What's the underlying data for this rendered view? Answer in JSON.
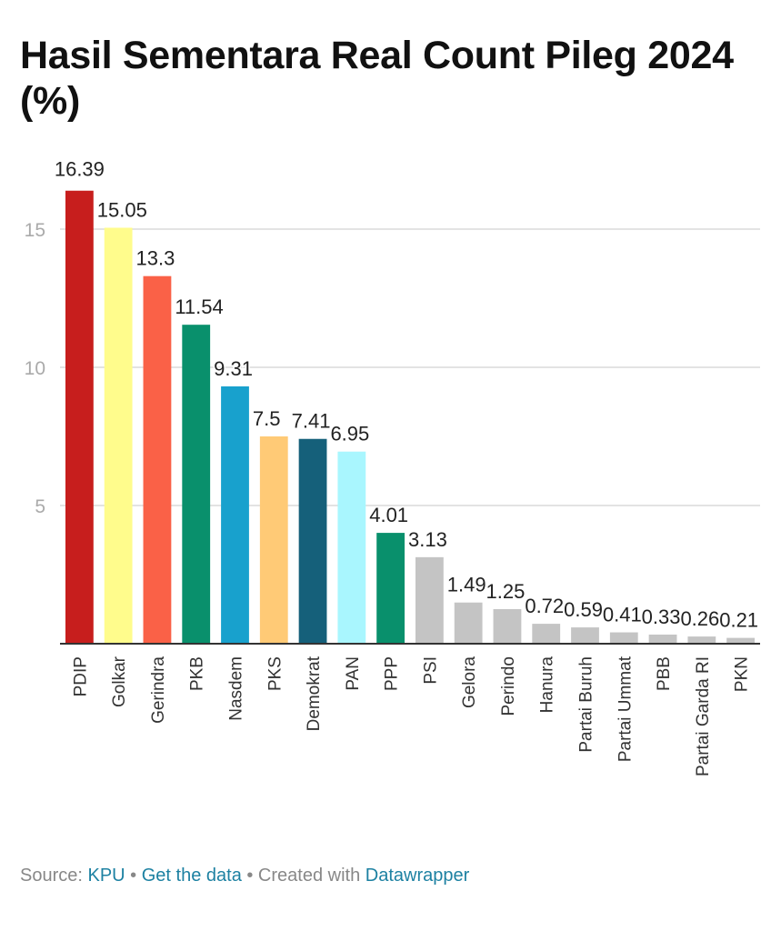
{
  "chart_data": {
    "type": "bar",
    "title": "Hasil Sementara Real Count Pileg 2024 (%)",
    "xlabel": "",
    "ylabel": "",
    "ylim": [
      0,
      16.39
    ],
    "yticks": [
      5,
      10,
      15
    ],
    "grid": true,
    "categories": [
      "PDIP",
      "Golkar",
      "Gerindra",
      "PKB",
      "Nasdem",
      "PKS",
      "Demokrat",
      "PAN",
      "PPP",
      "PSI",
      "Gelora",
      "Perindo",
      "Hanura",
      "Partai Buruh",
      "Partai Ummat",
      "PBB",
      "Partai Garda RI",
      "PKN"
    ],
    "values": [
      16.39,
      15.05,
      13.3,
      11.54,
      9.31,
      7.5,
      7.41,
      6.95,
      4.01,
      3.13,
      1.49,
      1.25,
      0.72,
      0.59,
      0.41,
      0.33,
      0.26,
      0.21
    ],
    "labels": [
      "16.39",
      "15.05",
      "13.3",
      "11.54",
      "9.31",
      "7.5",
      "7.41",
      "6.95",
      "4.01",
      "3.13",
      "1.49",
      "1.25",
      "0.72",
      "0.59",
      "0.41",
      "0.33",
      "0.26",
      "0.21"
    ],
    "colors": [
      "#c71e1d",
      "#fffc8c",
      "#fa6147",
      "#09906c",
      "#18a1cd",
      "#ffca76",
      "#15607a",
      "#a9f6fe",
      "#09906c",
      "#c4c4c4",
      "#c4c4c4",
      "#c4c4c4",
      "#c4c4c4",
      "#c4c4c4",
      "#c4c4c4",
      "#c4c4c4",
      "#c4c4c4",
      "#c4c4c4"
    ]
  },
  "footer": {
    "source_prefix": "Source: ",
    "source_link": "KPU",
    "separator1": " • ",
    "get_data": "Get the data",
    "separator2": " • Created with ",
    "tool_link": "Datawrapper"
  }
}
